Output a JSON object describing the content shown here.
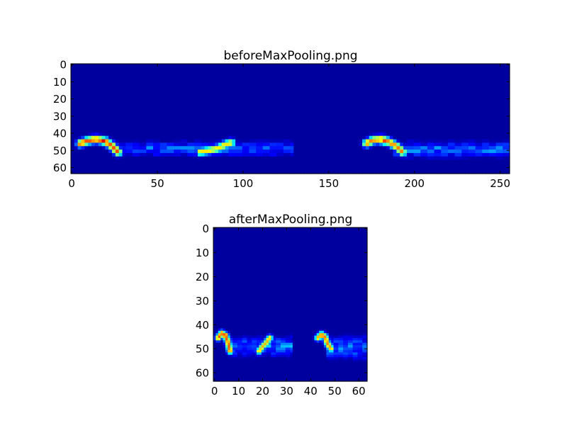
{
  "chart_data": [
    {
      "type": "heatmap",
      "title": "beforeMaxPooling.png",
      "colormap": "jet",
      "shape": [
        64,
        256
      ],
      "xlim": [
        -0.5,
        255.5
      ],
      "ylim": [
        63.5,
        -0.5
      ],
      "y_inverted": true,
      "xticks": [
        0,
        50,
        100,
        150,
        200,
        250
      ],
      "yticks": [
        0,
        10,
        20,
        30,
        40,
        50,
        60
      ],
      "grid": false,
      "background_value": 0.03,
      "strokes": [
        {
          "points": [
            [
              5,
              46
            ],
            [
              9,
              44.5
            ],
            [
              14,
              43.5
            ],
            [
              19,
              44.5
            ],
            [
              23,
              47
            ],
            [
              27,
              51
            ]
          ],
          "intensity": 0.8,
          "peak": [
            19,
            44.5
          ],
          "peak_intensity": 0.95
        },
        {
          "points": [
            [
              75,
              51
            ],
            [
              80,
              50
            ],
            [
              85,
              49
            ],
            [
              90,
              46.5
            ],
            [
              93,
              45.5
            ]
          ],
          "intensity": 0.65
        },
        {
          "points": [
            [
              172,
              46
            ],
            [
              176,
              44
            ],
            [
              181,
              43.5
            ],
            [
              185,
              45
            ],
            [
              190,
              48
            ],
            [
              193,
              51
            ]
          ],
          "intensity": 0.75,
          "peak": [
            182,
            44.5
          ],
          "peak_intensity": 0.85
        }
      ],
      "noise_bands": [
        {
          "x": [
            25,
            130
          ],
          "y": [
            43,
            55
          ],
          "intensity": 0.25
        },
        {
          "x": [
            188,
            255
          ],
          "y": [
            43,
            56
          ],
          "intensity": 0.28
        }
      ]
    },
    {
      "type": "heatmap",
      "title": "afterMaxPooling.png",
      "colormap": "jet",
      "shape": [
        64,
        64
      ],
      "xlim": [
        -0.5,
        63.5
      ],
      "ylim": [
        63.5,
        -0.5
      ],
      "y_inverted": true,
      "xticks": [
        0,
        10,
        20,
        30,
        40,
        50,
        60
      ],
      "yticks": [
        0,
        10,
        20,
        30,
        40,
        50,
        60
      ],
      "grid": false,
      "background_value": 0.03,
      "strokes": [
        {
          "points": [
            [
              1.5,
              45.5
            ],
            [
              3,
              43.5
            ],
            [
              4.5,
              44.5
            ],
            [
              5.5,
              47
            ],
            [
              6.5,
              51
            ]
          ],
          "intensity": 0.8,
          "peak": [
            4.5,
            44.5
          ],
          "peak_intensity": 0.95
        },
        {
          "points": [
            [
              18.5,
              51
            ],
            [
              20,
              49
            ],
            [
              21.5,
              47.5
            ],
            [
              23,
              45.5
            ]
          ],
          "intensity": 0.7
        },
        {
          "points": [
            [
              43,
              45.5
            ],
            [
              44.5,
              44
            ],
            [
              46,
              45
            ],
            [
              47,
              48
            ],
            [
              48.5,
              50
            ]
          ],
          "intensity": 0.75,
          "peak": [
            45,
            44.5
          ],
          "peak_intensity": 0.82
        }
      ],
      "noise_bands": [
        {
          "x": [
            6,
            32
          ],
          "y": [
            43,
            55
          ],
          "intensity": 0.28
        },
        {
          "x": [
            47,
            63
          ],
          "y": [
            43,
            56
          ],
          "intensity": 0.3
        }
      ]
    }
  ]
}
